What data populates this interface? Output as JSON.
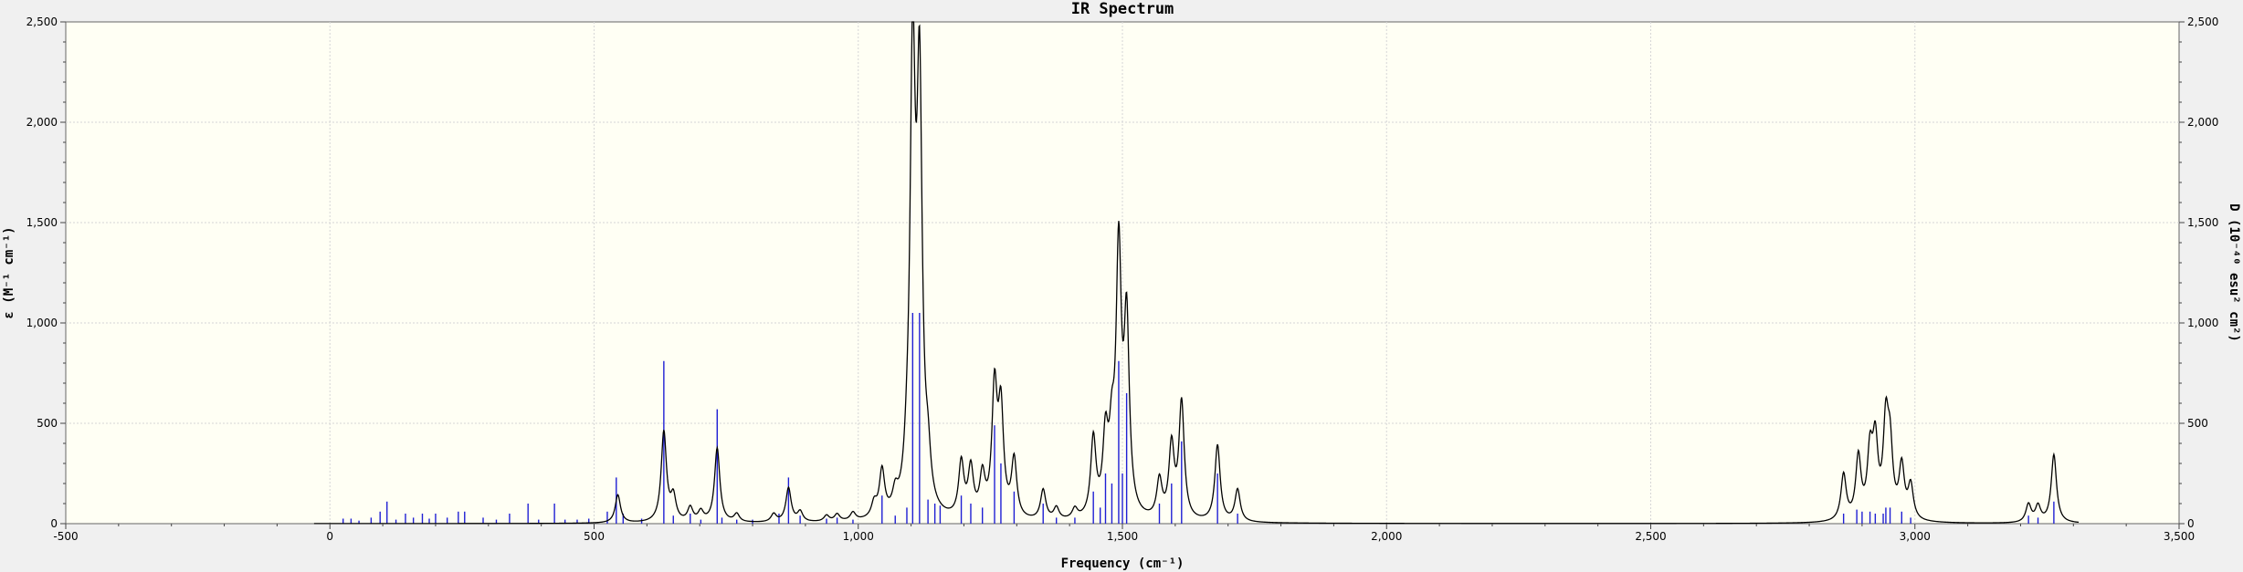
{
  "chart_data": {
    "type": "line",
    "title": "IR Spectrum",
    "xlabel": "Frequency (cm⁻¹)",
    "ylabel_left": "ε (M⁻¹ cm⁻¹)",
    "ylabel_right": "D (10⁻⁴⁰ esu² cm²)",
    "xlim": [
      -500,
      3500
    ],
    "ylim": [
      0,
      2500
    ],
    "x_ticks": [
      {
        "value": -500,
        "label": "-500"
      },
      {
        "value": 0,
        "label": "0"
      },
      {
        "value": 500,
        "label": "500"
      },
      {
        "value": 1000,
        "label": "1,000"
      },
      {
        "value": 1500,
        "label": "1,500"
      },
      {
        "value": 2000,
        "label": "2,000"
      },
      {
        "value": 2500,
        "label": "2,500"
      },
      {
        "value": 3000,
        "label": "3,000"
      },
      {
        "value": 3500,
        "label": "3,500"
      }
    ],
    "y_ticks": [
      {
        "value": 0,
        "label": "0"
      },
      {
        "value": 500,
        "label": "500"
      },
      {
        "value": 1000,
        "label": "1,000"
      },
      {
        "value": 1500,
        "label": "1,500"
      },
      {
        "value": 2000,
        "label": "2,000"
      },
      {
        "value": 2500,
        "label": "2,500"
      }
    ],
    "grid": true,
    "spectrum_range": [
      -30,
      3310
    ],
    "peak_half_width": 6,
    "series": [
      {
        "kind": "spectrum",
        "color": "#000000",
        "peaks": [
          [
            545,
            140
          ],
          [
            632,
            450
          ],
          [
            650,
            120
          ],
          [
            682,
            70
          ],
          [
            702,
            50
          ],
          [
            733,
            370
          ],
          [
            770,
            40
          ],
          [
            840,
            40
          ],
          [
            868,
            170
          ],
          [
            890,
            50
          ],
          [
            940,
            30
          ],
          [
            960,
            35
          ],
          [
            990,
            40
          ],
          [
            1030,
            70
          ],
          [
            1045,
            230
          ],
          [
            1070,
            90
          ],
          [
            1092,
            120
          ],
          [
            1103,
            2210
          ],
          [
            1116,
            2050
          ],
          [
            1132,
            200
          ],
          [
            1195,
            270
          ],
          [
            1213,
            240
          ],
          [
            1235,
            200
          ],
          [
            1258,
            630
          ],
          [
            1270,
            520
          ],
          [
            1295,
            290
          ],
          [
            1350,
            150
          ],
          [
            1375,
            60
          ],
          [
            1410,
            50
          ],
          [
            1445,
            390
          ],
          [
            1468,
            370
          ],
          [
            1480,
            310
          ],
          [
            1493,
            1290
          ],
          [
            1508,
            940
          ],
          [
            1570,
            190
          ],
          [
            1593,
            360
          ],
          [
            1612,
            580
          ],
          [
            1680,
            380
          ],
          [
            1718,
            160
          ],
          [
            2865,
            230
          ],
          [
            2893,
            310
          ],
          [
            2915,
            310
          ],
          [
            2925,
            360
          ],
          [
            2945,
            450
          ],
          [
            2953,
            320
          ],
          [
            2975,
            260
          ],
          [
            2992,
            170
          ],
          [
            3215,
            90
          ],
          [
            3233,
            80
          ],
          [
            3263,
            340
          ]
        ]
      },
      {
        "kind": "stick",
        "color": "#1f1fd4",
        "sticks": [
          [
            25,
            25
          ],
          [
            40,
            25
          ],
          [
            55,
            15
          ],
          [
            78,
            30
          ],
          [
            95,
            60
          ],
          [
            108,
            110
          ],
          [
            125,
            20
          ],
          [
            143,
            50
          ],
          [
            158,
            30
          ],
          [
            175,
            50
          ],
          [
            188,
            25
          ],
          [
            200,
            50
          ],
          [
            222,
            30
          ],
          [
            243,
            60
          ],
          [
            255,
            60
          ],
          [
            290,
            30
          ],
          [
            315,
            20
          ],
          [
            340,
            50
          ],
          [
            375,
            100
          ],
          [
            395,
            20
          ],
          [
            425,
            100
          ],
          [
            445,
            20
          ],
          [
            468,
            20
          ],
          [
            490,
            25
          ],
          [
            525,
            60
          ],
          [
            542,
            230
          ],
          [
            555,
            50
          ],
          [
            590,
            25
          ],
          [
            632,
            810
          ],
          [
            650,
            40
          ],
          [
            682,
            50
          ],
          [
            702,
            20
          ],
          [
            733,
            570
          ],
          [
            742,
            30
          ],
          [
            770,
            20
          ],
          [
            800,
            20
          ],
          [
            850,
            50
          ],
          [
            868,
            230
          ],
          [
            890,
            40
          ],
          [
            940,
            25
          ],
          [
            960,
            30
          ],
          [
            990,
            20
          ],
          [
            1045,
            140
          ],
          [
            1070,
            40
          ],
          [
            1092,
            80
          ],
          [
            1103,
            1050
          ],
          [
            1116,
            1050
          ],
          [
            1132,
            120
          ],
          [
            1145,
            100
          ],
          [
            1155,
            90
          ],
          [
            1195,
            140
          ],
          [
            1213,
            100
          ],
          [
            1235,
            80
          ],
          [
            1258,
            490
          ],
          [
            1270,
            300
          ],
          [
            1295,
            160
          ],
          [
            1350,
            100
          ],
          [
            1375,
            30
          ],
          [
            1410,
            30
          ],
          [
            1445,
            160
          ],
          [
            1458,
            80
          ],
          [
            1468,
            250
          ],
          [
            1480,
            200
          ],
          [
            1493,
            810
          ],
          [
            1500,
            250
          ],
          [
            1508,
            650
          ],
          [
            1570,
            100
          ],
          [
            1593,
            200
          ],
          [
            1612,
            410
          ],
          [
            1680,
            250
          ],
          [
            1718,
            50
          ],
          [
            2865,
            50
          ],
          [
            2890,
            70
          ],
          [
            2900,
            60
          ],
          [
            2915,
            60
          ],
          [
            2925,
            50
          ],
          [
            2940,
            50
          ],
          [
            2945,
            80
          ],
          [
            2953,
            80
          ],
          [
            2975,
            60
          ],
          [
            2992,
            30
          ],
          [
            3215,
            40
          ],
          [
            3233,
            30
          ],
          [
            3263,
            110
          ]
        ]
      }
    ]
  }
}
